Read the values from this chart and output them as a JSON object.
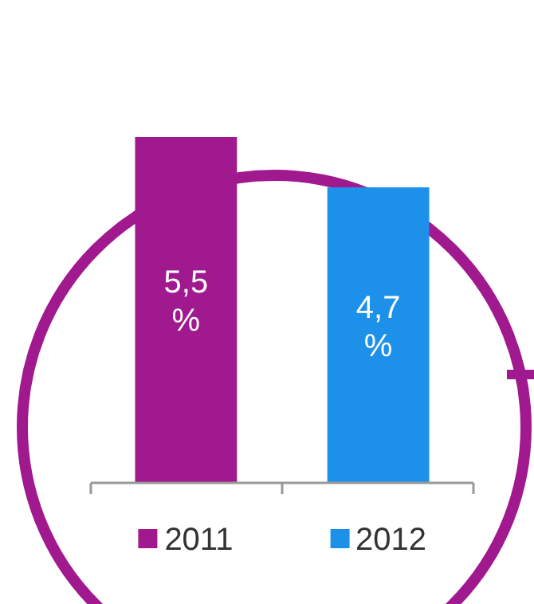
{
  "chart_data": {
    "type": "bar",
    "categories": [
      "2011",
      "2012"
    ],
    "values": [
      5.5,
      4.7
    ],
    "colors": [
      "#a1198f",
      "#1d90ea"
    ],
    "value_labels": [
      "5,5 %",
      "4,7 %"
    ]
  }
}
